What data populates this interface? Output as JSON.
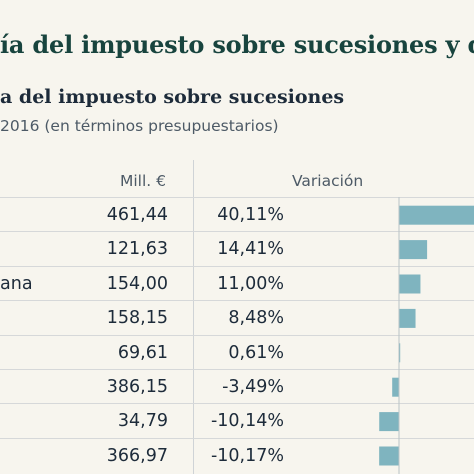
{
  "header": {
    "title": "ía del impuesto sobre sucesiones y do",
    "subtitle": "a del impuesto sobre sucesiones",
    "period": "2016 (en términos presupuestarios)"
  },
  "columns": {
    "mill": "Mill. €",
    "variation": "Variación"
  },
  "colors": {
    "bar": "#7fb4bf",
    "title": "#18443e"
  },
  "chart_data": {
    "type": "table",
    "rows": [
      {
        "name": "",
        "mill": "461,44",
        "pct": "40,11%",
        "value": 40.11
      },
      {
        "name": "",
        "mill": "121,63",
        "pct": "14,41%",
        "value": 14.41
      },
      {
        "name": "ana",
        "mill": "154,00",
        "pct": "11,00%",
        "value": 11.0
      },
      {
        "name": "",
        "mill": "158,15",
        "pct": "8,48%",
        "value": 8.48
      },
      {
        "name": "",
        "mill": "69,61",
        "pct": "0,61%",
        "value": 0.61
      },
      {
        "name": "",
        "mill": "386,15",
        "pct": "-3,49%",
        "value": -3.49
      },
      {
        "name": "",
        "mill": "34,79",
        "pct": "-10,14%",
        "value": -10.14
      },
      {
        "name": "",
        "mill": "366,97",
        "pct": "-10,17%",
        "value": -10.17
      }
    ]
  }
}
